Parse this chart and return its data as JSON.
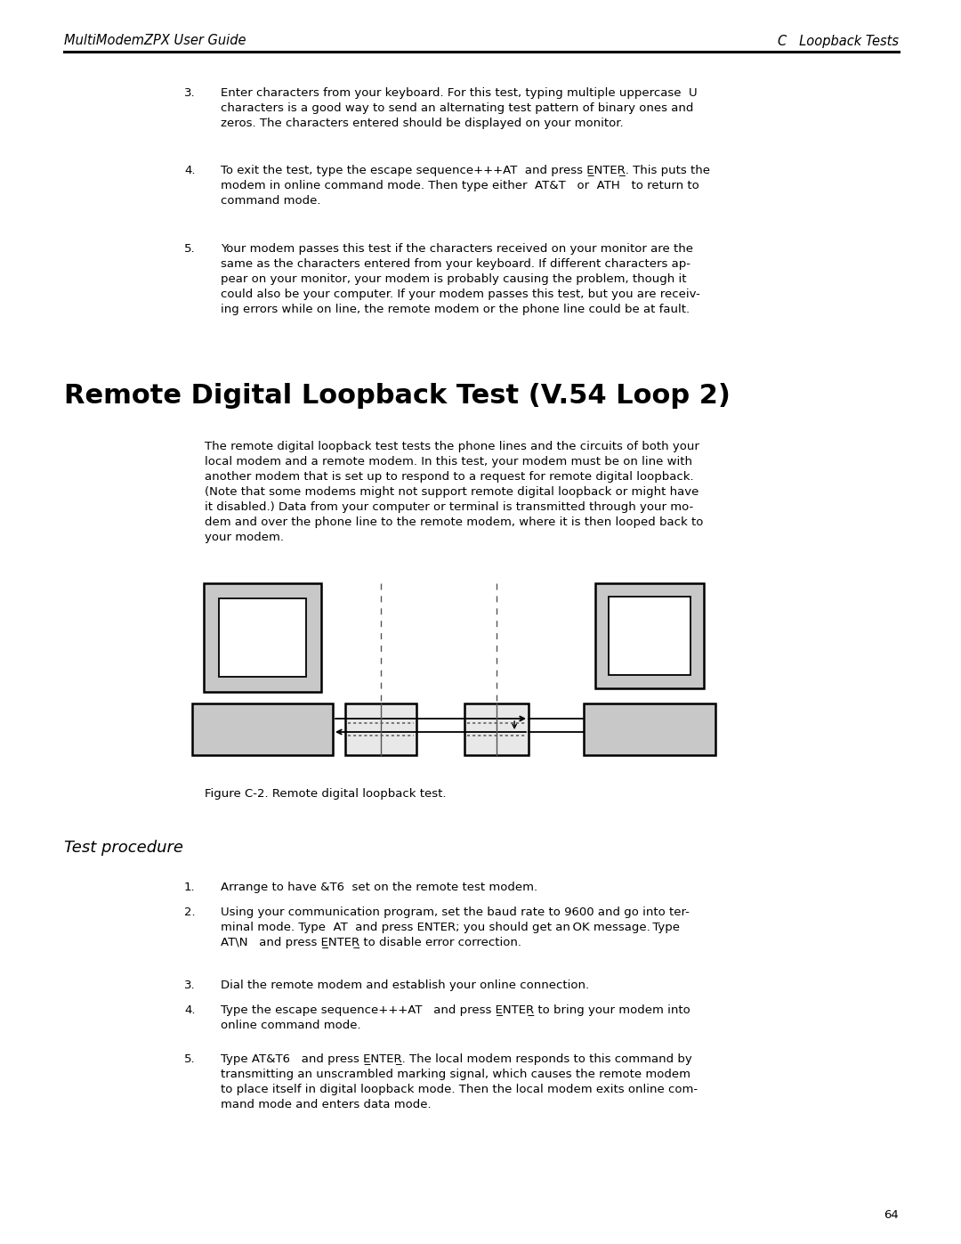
{
  "page_bg": "#ffffff",
  "header_left": "MultiModemZPX User Guide",
  "header_right": "C   Loopback Tests",
  "header_font_size": 10.5,
  "section_title": "Remote Digital Loopback Test (V.54 Loop 2)",
  "section_title_font_size": 22,
  "body_text_font_size": 9.5,
  "figure_caption": "Figure C-2. Remote digital loopback test.",
  "figure_caption_font_size": 9.5,
  "test_procedure_title": "Test procedure",
  "test_procedure_font_size": 13,
  "page_number": "64",
  "gray_light": "#c8c8c8",
  "gray_dark": "#555555",
  "black": "#000000",
  "white": "#ffffff",
  "inner_box": "#e8e8e8"
}
